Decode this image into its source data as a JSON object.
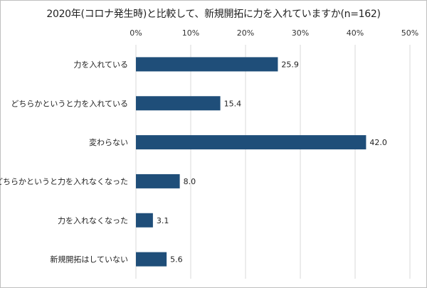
{
  "chart_data": {
    "type": "bar",
    "orientation": "horizontal",
    "title": "2020年(コロナ発生時)と比較して、新規開拓に力を入れていますか(n=162)",
    "categories": [
      "力を入れている",
      "どちらかというと力を入れている",
      "変わらない",
      "どちらかというと力を入れなくなった",
      "力を入れなくなった",
      "新規開拓はしていない"
    ],
    "values": [
      25.9,
      15.4,
      42.0,
      8.0,
      3.1,
      5.6
    ],
    "value_labels": [
      "25.9",
      "15.4",
      "42.0",
      "8.0",
      "3.1",
      "5.6"
    ],
    "xlim": [
      0,
      50
    ],
    "x_ticks": [
      "0%",
      "10%",
      "20%",
      "30%",
      "40%",
      "50%"
    ],
    "x_axis_position": "top",
    "grid": true,
    "bar_color": "#1f4e79"
  }
}
